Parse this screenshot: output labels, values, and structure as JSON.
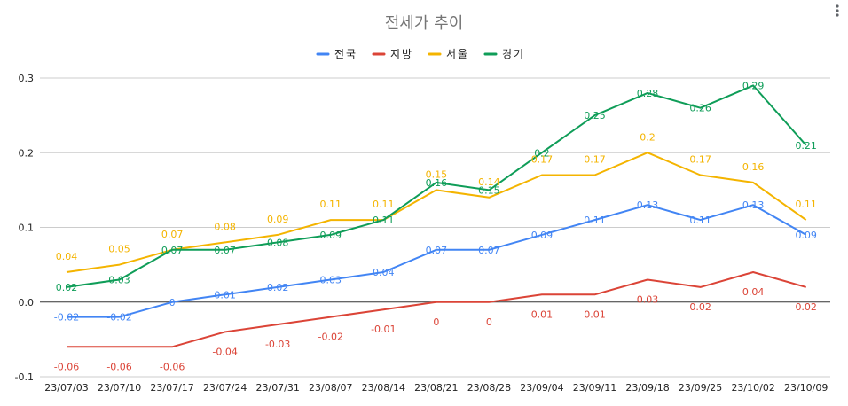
{
  "chart_data": {
    "type": "line",
    "title": "전세가 추이",
    "categories": [
      "23/07/03",
      "23/07/10",
      "23/07/17",
      "23/07/24",
      "23/07/31",
      "23/08/07",
      "23/08/14",
      "23/08/21",
      "23/08/28",
      "23/09/04",
      "23/09/11",
      "23/09/18",
      "23/09/25",
      "23/10/02",
      "23/10/09"
    ],
    "series": [
      {
        "name": "전국",
        "color": "#4285F4",
        "values": [
          -0.02,
          -0.02,
          0,
          0.01,
          0.02,
          0.03,
          0.04,
          0.07,
          0.07,
          0.09,
          0.11,
          0.13,
          0.11,
          0.13,
          0.09
        ]
      },
      {
        "name": "지방",
        "color": "#DB4437",
        "values": [
          -0.06,
          -0.06,
          -0.06,
          -0.04,
          -0.03,
          -0.02,
          -0.01,
          0,
          0,
          0.01,
          0.01,
          0.03,
          0.02,
          0.04,
          0.02
        ]
      },
      {
        "name": "서울",
        "color": "#F4B400",
        "values": [
          0.04,
          0.05,
          0.07,
          0.08,
          0.09,
          0.11,
          0.11,
          0.15,
          0.14,
          0.17,
          0.17,
          0.2,
          0.17,
          0.16,
          0.11
        ]
      },
      {
        "name": "경기",
        "color": "#0F9D58",
        "values": [
          0.02,
          0.03,
          0.07,
          0.07,
          0.08,
          0.09,
          0.11,
          0.16,
          0.15,
          0.2,
          0.25,
          0.28,
          0.26,
          0.29,
          0.21
        ]
      }
    ],
    "yticks": [
      "-0.1",
      "0.0",
      "0.1",
      "0.2",
      "0.3"
    ],
    "ylim": [
      -0.1,
      0.3
    ],
    "legend_position": "top",
    "grid": true,
    "xlabel": "",
    "ylabel": ""
  },
  "menu_icon": "more-vert-icon"
}
